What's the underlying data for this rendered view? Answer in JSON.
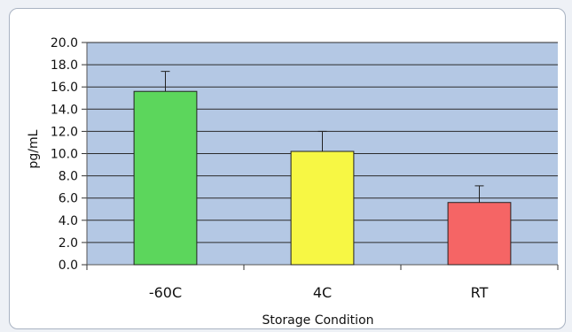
{
  "chart_data": {
    "type": "bar",
    "title": "",
    "xlabel": "Storage Condition",
    "ylabel": "pg/mL",
    "categories": [
      "-60C",
      "4C",
      "RT"
    ],
    "values": [
      15.6,
      10.2,
      5.6
    ],
    "error_bars": [
      1.8,
      1.8,
      1.5
    ],
    "bar_colors": [
      "#5cd65c",
      "#f7f744",
      "#f56565"
    ],
    "ylim": [
      0,
      20
    ],
    "ytick_step": 2,
    "ytick_labels": [
      "0.0",
      "2.0",
      "4.0",
      "6.0",
      "8.0",
      "10.0",
      "12.0",
      "14.0",
      "16.0",
      "18.0",
      "20.0"
    ],
    "grid": true,
    "plot_background": "#b4c8e4",
    "legend": "none"
  }
}
